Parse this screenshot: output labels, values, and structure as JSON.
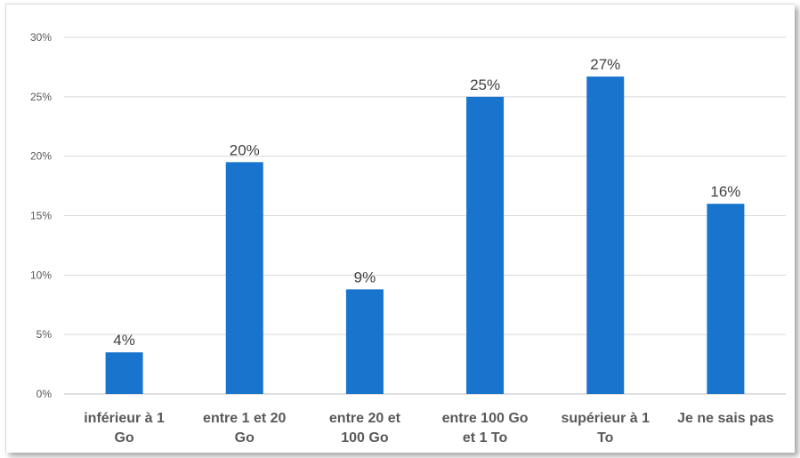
{
  "chart_data": {
    "type": "bar",
    "categories": [
      [
        "inférieur à 1",
        "Go"
      ],
      [
        "entre 1 et 20",
        "Go"
      ],
      [
        "entre 20 et",
        "100 Go"
      ],
      [
        "entre 100 Go",
        "et 1 To"
      ],
      [
        "supérieur à 1",
        "To"
      ],
      [
        "Je ne sais pas"
      ]
    ],
    "values": [
      3.5,
      19.5,
      8.8,
      25.0,
      26.7,
      16.0
    ],
    "data_labels": [
      "4%",
      "20%",
      "9%",
      "25%",
      "27%",
      "16%"
    ],
    "ylim": [
      0,
      30
    ],
    "yticks": [
      0,
      5,
      10,
      15,
      20,
      25,
      30
    ],
    "ytick_labels": [
      "0%",
      "5%",
      "10%",
      "15%",
      "20%",
      "25%",
      "30%"
    ],
    "bar_color": "#1874CD",
    "grid": true,
    "title": "",
    "xlabel": "",
    "ylabel": ""
  }
}
